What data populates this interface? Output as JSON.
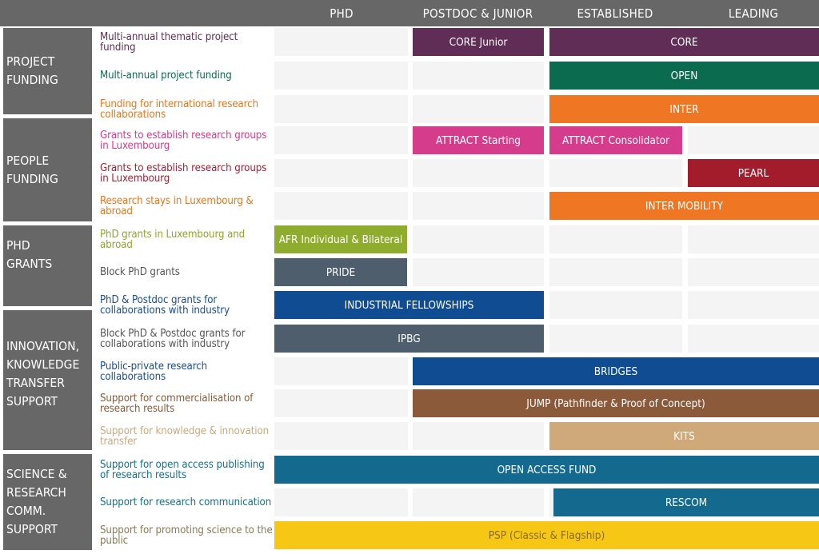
{
  "columns": [
    "PHD",
    "POSTDOC & JUNIOR",
    "ESTABLISHED",
    "LEADING"
  ],
  "categories": [
    {
      "lines": [
        "PROJECT",
        "FUNDING"
      ]
    },
    {
      "lines": [
        "PEOPLE",
        "FUNDING"
      ]
    },
    {
      "lines": [
        "PHD",
        "GRANTS"
      ]
    },
    {
      "lines": [
        "INNOVATION,",
        "KNOWLEDGE",
        "TRANSFER",
        "SUPPORT"
      ]
    },
    {
      "lines": [
        "SCIENCE &",
        "RESEARCH",
        "COMM.",
        "SUPPORT"
      ]
    }
  ],
  "rows": [
    {
      "desc": "Multi-annual thematic project funding",
      "color": "#5f2d55"
    },
    {
      "desc": "Multi-annual project funding",
      "color": "#0b6b4f"
    },
    {
      "desc": "Funding for international research collaborations",
      "color": "#e8761c"
    },
    {
      "desc": "Grants to establish research groups in Luxembourg",
      "color": "#d83a8c"
    },
    {
      "desc": "Grants to establish research groups in Luxembourg",
      "color": "#a31f33"
    },
    {
      "desc": "Research stays in Luxembourg & abroad",
      "color": "#e8761c"
    },
    {
      "desc": "PhD grants in Luxembourg and abroad",
      "color": "#8fa52d"
    },
    {
      "desc": "Block PhD grants",
      "color": "#555555"
    },
    {
      "desc": "PhD & Postdoc grants for collaborations with industry",
      "color": "#1b4c94"
    },
    {
      "desc": "Block PhD & Postdoc grants for collaborations with industry",
      "color": "#555555"
    },
    {
      "desc": "Public-private research collaborations",
      "color": "#1b4c94"
    },
    {
      "desc": "Support for commercialisation of research results",
      "color": "#8a5a37"
    },
    {
      "desc": "Support for knowledge & innovation transfer",
      "color": "#c9a97e"
    },
    {
      "desc": "Support for open access publishing of research results",
      "color": "#156f93"
    },
    {
      "desc": "Support for research communication",
      "color": "#156f93"
    },
    {
      "desc": "Support for promoting science to the public",
      "color": "#8a7a55"
    }
  ],
  "programs": [
    {
      "label": "CORE Junior",
      "color": "#5f2d55"
    },
    {
      "label": "CORE",
      "color": "#5f2d55"
    },
    {
      "label": "OPEN",
      "color": "#0b6b4f"
    },
    {
      "label": "INTER",
      "color": "#ef7622"
    },
    {
      "label": "ATTRACT Starting",
      "color": "#d63c8c"
    },
    {
      "label": "ATTRACT Consolidator",
      "color": "#d63c8c"
    },
    {
      "label": "PEARL",
      "color": "#a31c2c"
    },
    {
      "label": "INTER MOBILITY",
      "color": "#ef7622"
    },
    {
      "label": "AFR Individual & Bilateral",
      "color": "#8fac2f"
    },
    {
      "label": "PRIDE",
      "color": "#4e5e6d"
    },
    {
      "label": "INDUSTRIAL FELLOWSHIPS",
      "color": "#0f4c92"
    },
    {
      "label": "IPBG",
      "color": "#4e5e6d"
    },
    {
      "label": "BRIDGES",
      "color": "#0f4c92"
    },
    {
      "label": "JUMP (Pathfinder & Proof of Concept)",
      "color": "#8a5a3a"
    },
    {
      "label": "KITS",
      "color": "#cfa97a"
    },
    {
      "label": "OPEN ACCESS FUND",
      "color": "#14698f"
    },
    {
      "label": "RESCOM",
      "color": "#14698f"
    },
    {
      "label": "PSP (Classic & Flagship)",
      "color": "#f7c715",
      "text_color": "#8a6a20"
    }
  ]
}
